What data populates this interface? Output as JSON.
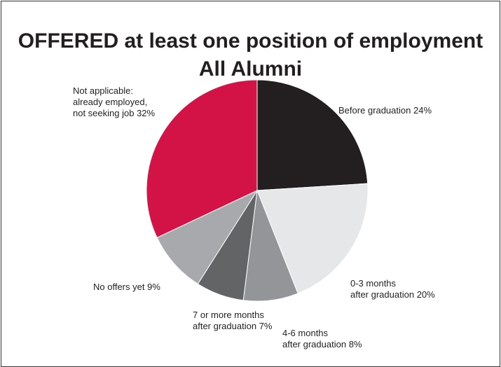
{
  "chart_data": {
    "type": "pie",
    "title": "OFFERED at least one position of employment",
    "subtitle": "All Alumni",
    "categories": [
      "Before graduation",
      "0-3 months\nafter graduation",
      "4-6 months\nafter graduation",
      "7 or more months\nafter graduation",
      "No offers yet",
      "Not applicable:\nalready employed,\nnot seeking job"
    ],
    "values": [
      24,
      20,
      8,
      7,
      9,
      32
    ],
    "value_labels": [
      "24%",
      "20%",
      "8%",
      "7%",
      "9%",
      "32%"
    ],
    "colors": [
      "#231f20",
      "#e6e7e8",
      "#939598",
      "#636466",
      "#a7a9ac",
      "#d31245"
    ]
  }
}
